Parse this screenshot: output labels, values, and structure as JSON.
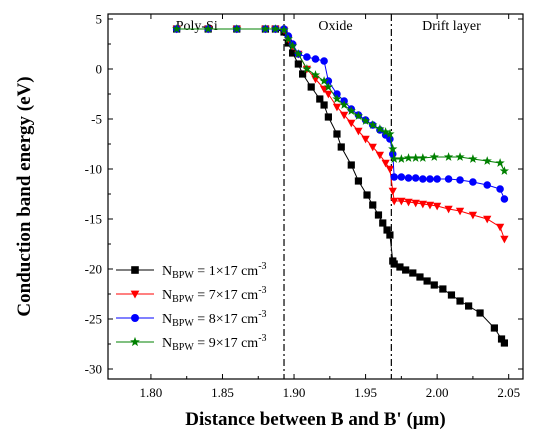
{
  "chart_data": {
    "type": "line",
    "xlabel": "Distance between B and B' (μm)",
    "ylabel": "Conduction band energy (eV)",
    "xlim": [
      1.77,
      2.06
    ],
    "ylim": [
      -31,
      5.5
    ],
    "xticks": [
      1.8,
      1.85,
      1.9,
      1.95,
      2.0,
      2.05
    ],
    "xtick_labels": [
      "1.80",
      "1.85",
      "1.90",
      "1.95",
      "2.00",
      "2.05"
    ],
    "yticks": [
      5,
      0,
      -5,
      -10,
      -15,
      -20,
      -25,
      -30
    ],
    "ytick_labels": [
      "5",
      "0",
      "-5",
      "-10",
      "-15",
      "-20",
      "-25",
      "-30"
    ],
    "grid": false,
    "legend_position": "bottom-left",
    "boundaries": [
      1.893,
      1.968
    ],
    "regions": [
      {
        "label": "Poly-Si",
        "x": 1.832
      },
      {
        "label": "Oxide",
        "x": 1.929
      },
      {
        "label": "Drift layer",
        "x": 2.01
      }
    ],
    "series": [
      {
        "name": "1×17",
        "legend": {
          "base": "N",
          "sub": "BPW",
          "value": " = 1×17 cm",
          "sup": "-3"
        },
        "color": "#000000",
        "marker": "square",
        "x": [
          1.818,
          1.84,
          1.86,
          1.88,
          1.887,
          1.893,
          1.896,
          1.899,
          1.903,
          1.906,
          1.912,
          1.918,
          1.921,
          1.924,
          1.93,
          1.933,
          1.94,
          1.945,
          1.951,
          1.955,
          1.959,
          1.962,
          1.965,
          1.967,
          1.969,
          1.97,
          1.974,
          1.978,
          1.983,
          1.988,
          1.993,
          1.998,
          2.004,
          2.01,
          2.016,
          2.022,
          2.03,
          2.04,
          2.045,
          2.047
        ],
        "y": [
          4.0,
          4.0,
          4.0,
          4.0,
          4.0,
          3.7,
          2.6,
          1.6,
          0.5,
          -0.5,
          -1.8,
          -3.0,
          -3.6,
          -4.8,
          -6.5,
          -7.8,
          -9.6,
          -11.2,
          -12.6,
          -13.6,
          -14.6,
          -15.4,
          -16.1,
          -16.6,
          -19.2,
          -19.5,
          -19.8,
          -20.1,
          -20.4,
          -20.8,
          -21.2,
          -21.6,
          -22.0,
          -22.6,
          -23.2,
          -23.7,
          -24.4,
          -25.9,
          -27.0,
          -27.4
        ]
      },
      {
        "name": "7×17",
        "legend": {
          "base": "N",
          "sub": "BPW",
          "value": " = 7×17 cm",
          "sup": "-3"
        },
        "color": "#ff0000",
        "marker": "triangle-down",
        "x": [
          1.818,
          1.84,
          1.86,
          1.88,
          1.887,
          1.893,
          1.896,
          1.899,
          1.903,
          1.909,
          1.915,
          1.921,
          1.924,
          1.93,
          1.935,
          1.94,
          1.945,
          1.95,
          1.955,
          1.96,
          1.964,
          1.967,
          1.969,
          1.97,
          1.975,
          1.98,
          1.985,
          1.99,
          1.995,
          2.0,
          2.008,
          2.016,
          2.025,
          2.035,
          2.044,
          2.047
        ],
        "y": [
          4.0,
          4.0,
          4.0,
          4.0,
          4.0,
          3.9,
          3.0,
          2.3,
          1.5,
          0.0,
          -1.0,
          -2.0,
          -2.5,
          -3.8,
          -4.6,
          -5.4,
          -6.2,
          -7.0,
          -7.8,
          -8.6,
          -9.4,
          -10.0,
          -12.2,
          -13.2,
          -13.2,
          -13.3,
          -13.4,
          -13.5,
          -13.6,
          -13.7,
          -14.0,
          -14.2,
          -14.6,
          -15.0,
          -15.8,
          -17.0
        ]
      },
      {
        "name": "8×17",
        "legend": {
          "base": "N",
          "sub": "BPW",
          "value": " = 8×17 cm",
          "sup": "-3"
        },
        "color": "#0000ff",
        "marker": "circle",
        "x": [
          1.818,
          1.84,
          1.86,
          1.88,
          1.887,
          1.893,
          1.896,
          1.899,
          1.903,
          1.909,
          1.915,
          1.921,
          1.924,
          1.93,
          1.935,
          1.94,
          1.945,
          1.95,
          1.955,
          1.96,
          1.964,
          1.967,
          1.969,
          1.97,
          1.975,
          1.98,
          1.985,
          1.99,
          1.995,
          2.0,
          2.008,
          2.016,
          2.025,
          2.035,
          2.044,
          2.047
        ],
        "y": [
          4.0,
          4.0,
          4.0,
          4.0,
          4.0,
          4.0,
          3.3,
          2.5,
          1.5,
          1.2,
          1.0,
          0.8,
          -1.2,
          -2.5,
          -3.2,
          -4.0,
          -4.6,
          -5.1,
          -5.6,
          -6.1,
          -6.6,
          -7.0,
          -8.5,
          -10.8,
          -10.8,
          -10.9,
          -10.9,
          -11.0,
          -11.0,
          -11.0,
          -11.0,
          -11.1,
          -11.3,
          -11.6,
          -12.0,
          -13.0
        ]
      },
      {
        "name": "9×17",
        "legend": {
          "base": "N",
          "sub": "BPW",
          "value": " = 9×17 cm",
          "sup": "-3"
        },
        "color": "#008000",
        "marker": "star",
        "x": [
          1.818,
          1.84,
          1.86,
          1.88,
          1.887,
          1.893,
          1.896,
          1.899,
          1.903,
          1.909,
          1.915,
          1.921,
          1.924,
          1.93,
          1.935,
          1.94,
          1.945,
          1.95,
          1.955,
          1.96,
          1.964,
          1.967,
          1.969,
          1.97,
          1.975,
          1.98,
          1.985,
          1.99,
          1.998,
          2.008,
          2.016,
          2.025,
          2.035,
          2.044,
          2.047
        ],
        "y": [
          4.0,
          4.0,
          4.0,
          4.0,
          4.0,
          3.9,
          3.0,
          2.3,
          1.5,
          0.0,
          -0.6,
          -1.2,
          -1.8,
          -3.0,
          -3.6,
          -4.2,
          -4.7,
          -5.2,
          -5.6,
          -6.0,
          -6.3,
          -6.5,
          -8.0,
          -9.0,
          -9.0,
          -8.9,
          -8.9,
          -8.9,
          -8.8,
          -8.8,
          -8.8,
          -9.0,
          -9.2,
          -9.4,
          -10.2
        ]
      }
    ]
  }
}
